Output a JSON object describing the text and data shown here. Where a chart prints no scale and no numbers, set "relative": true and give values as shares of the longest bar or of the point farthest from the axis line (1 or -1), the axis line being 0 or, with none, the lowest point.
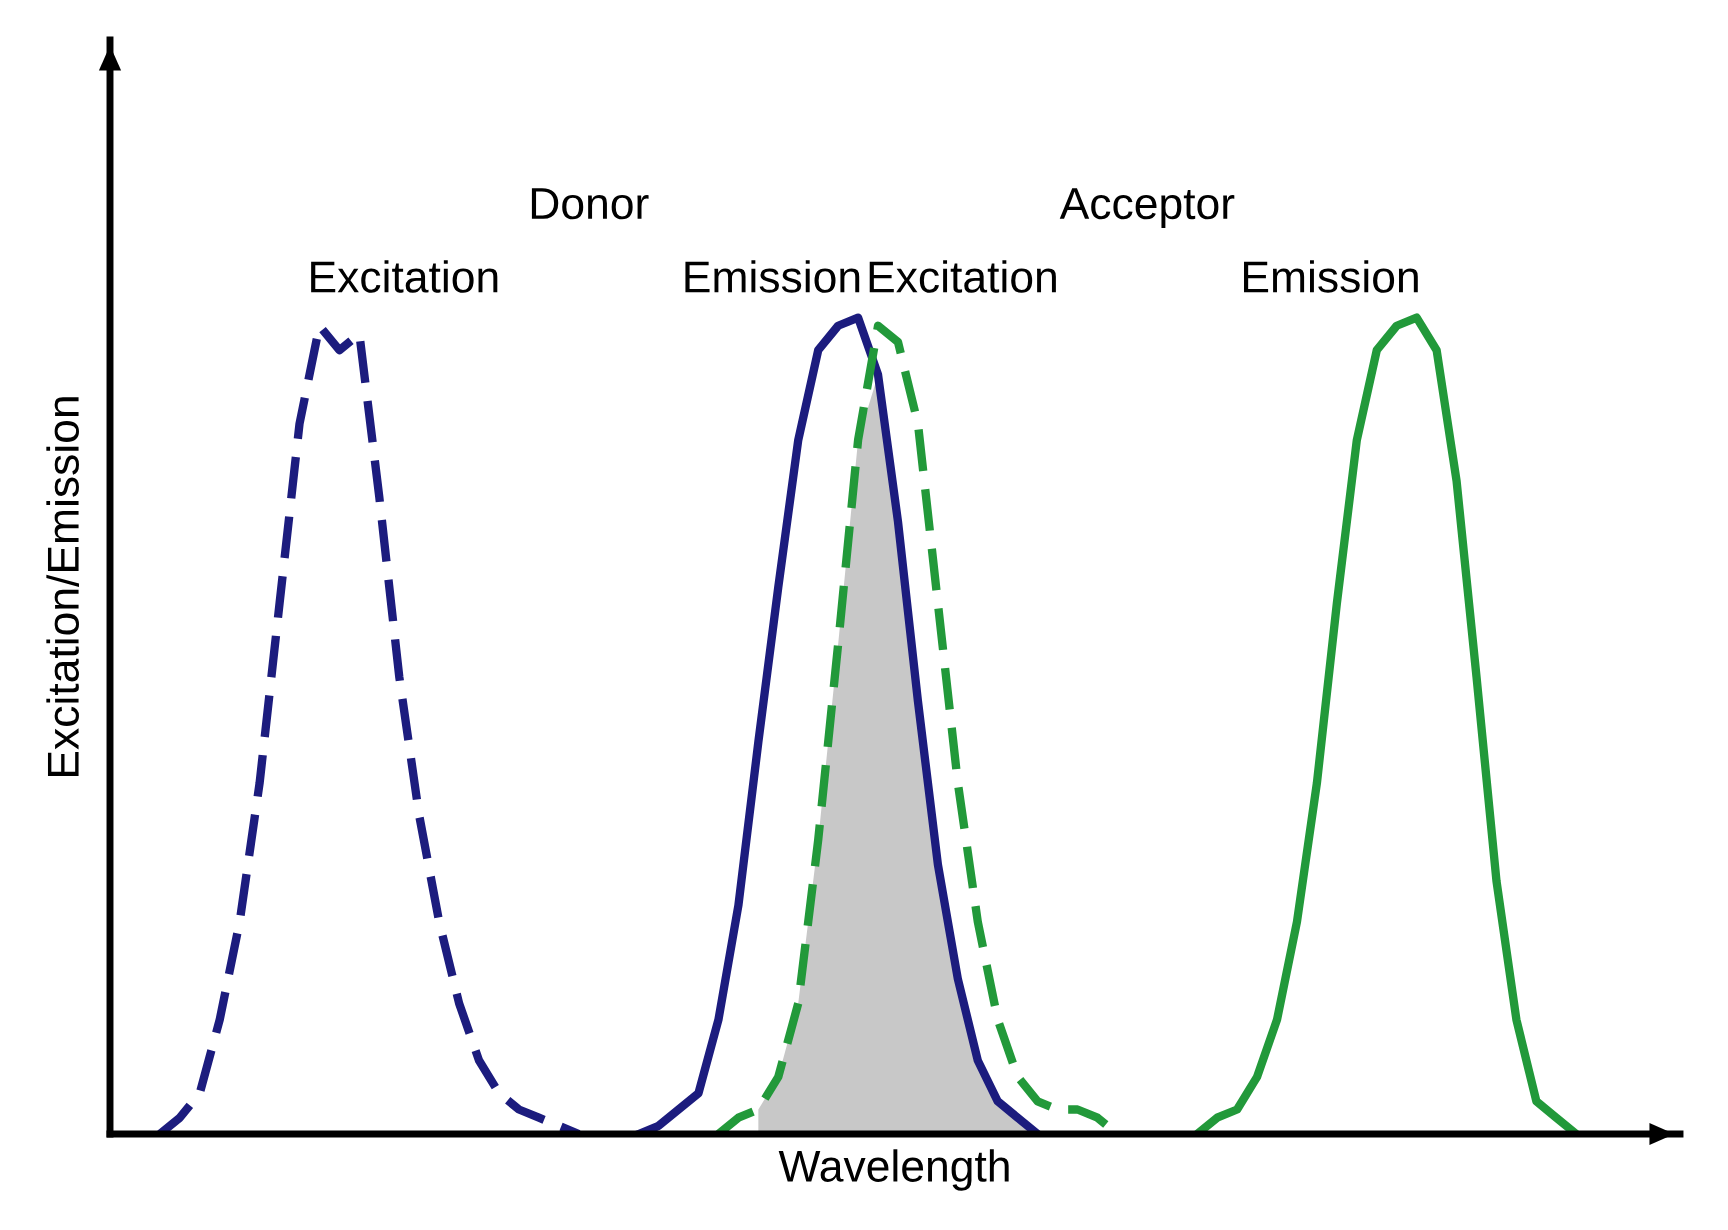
{
  "chart_data": {
    "type": "line",
    "relative": true,
    "xlabel": "Wavelength",
    "ylabel": "Excitation/Emission",
    "annotations": [
      "Donor",
      "Acceptor"
    ],
    "categories": [
      null,
      null,
      null,
      null,
      null,
      null,
      null,
      null,
      null,
      null,
      null,
      null,
      null,
      null,
      null,
      null,
      null,
      null,
      null,
      null,
      null,
      null,
      null,
      null,
      null,
      null,
      null,
      null,
      null,
      null,
      null,
      null,
      null,
      null,
      null,
      null,
      null,
      null,
      null,
      null,
      null,
      null,
      null,
      null,
      null,
      null,
      null,
      null,
      null,
      null,
      null,
      null,
      null,
      null,
      null,
      null,
      null,
      null,
      null,
      null,
      null,
      null,
      null,
      null,
      null,
      null,
      null,
      null,
      null,
      null,
      null,
      null,
      null,
      null,
      null,
      null,
      null,
      null,
      null
    ],
    "series": [
      {
        "type": "area",
        "color": "#c8c8c8",
        "values": [
          null,
          null,
          null,
          null,
          null,
          null,
          null,
          null,
          null,
          null,
          null,
          null,
          null,
          null,
          null,
          null,
          null,
          null,
          null,
          null,
          null,
          null,
          null,
          null,
          null,
          null,
          null,
          null,
          null,
          null,
          null,
          null,
          0.03,
          0.07,
          0.16,
          0.36,
          0.6,
          0.85,
          0.93,
          0.75,
          0.53,
          0.33,
          0.19,
          0.09,
          0.04,
          0.02,
          0,
          null,
          null,
          null,
          null,
          null,
          null,
          null,
          null,
          null,
          null,
          null,
          null,
          null,
          null,
          null,
          null,
          null,
          null,
          null,
          null,
          null,
          null,
          null,
          null,
          null,
          null,
          null,
          null,
          null,
          null,
          null,
          null
        ]
      },
      {
        "name": "Excitation",
        "color": "#1c1c7e",
        "line_style": "dashed",
        "values": [
          null,
          null,
          0,
          0.02,
          0.05,
          0.14,
          0.26,
          0.43,
          0.65,
          0.87,
          0.99,
          0.96,
          0.98,
          0.78,
          0.56,
          0.39,
          0.26,
          0.16,
          0.09,
          0.05,
          0.03,
          0.02,
          0.01,
          0,
          null,
          null,
          null,
          null,
          null,
          null,
          null,
          null,
          null,
          null,
          null,
          null,
          null,
          null,
          null,
          null,
          null,
          null,
          null,
          null,
          null,
          null,
          null,
          null,
          null,
          null,
          null,
          null,
          null,
          null,
          null,
          null,
          null,
          null,
          null,
          null,
          null,
          null,
          null,
          null,
          null,
          null,
          null,
          null,
          null,
          null,
          null,
          null,
          null,
          null,
          null,
          null,
          null,
          null,
          null
        ]
      },
      {
        "name": "Emission",
        "color": "#1c1c7e",
        "line_style": "solid",
        "values": [
          null,
          null,
          null,
          null,
          null,
          null,
          null,
          null,
          null,
          null,
          null,
          null,
          null,
          null,
          null,
          null,
          null,
          null,
          null,
          null,
          null,
          null,
          null,
          null,
          null,
          null,
          0,
          0.01,
          0.03,
          0.05,
          0.14,
          0.28,
          0.48,
          0.67,
          0.85,
          0.96,
          0.99,
          1,
          0.93,
          0.75,
          0.53,
          0.33,
          0.19,
          0.09,
          0.04,
          0.02,
          0,
          null,
          null,
          null,
          null,
          null,
          null,
          null,
          null,
          null,
          null,
          null,
          null,
          null,
          null,
          null,
          null,
          null,
          null,
          null,
          null,
          null,
          null,
          null,
          null,
          null,
          null,
          null,
          null,
          null,
          null,
          null,
          null
        ]
      },
      {
        "name": "Excitation",
        "color": "#22993a",
        "line_style": "dashed",
        "values": [
          null,
          null,
          null,
          null,
          null,
          null,
          null,
          null,
          null,
          null,
          null,
          null,
          null,
          null,
          null,
          null,
          null,
          null,
          null,
          null,
          null,
          null,
          null,
          null,
          null,
          null,
          null,
          null,
          null,
          null,
          0,
          0.02,
          0.03,
          0.07,
          0.16,
          0.36,
          0.6,
          0.85,
          0.99,
          0.97,
          0.87,
          0.65,
          0.43,
          0.26,
          0.14,
          0.07,
          0.04,
          0.03,
          0.03,
          0.02,
          0,
          null,
          null,
          null,
          null,
          null,
          null,
          null,
          null,
          null,
          null,
          null,
          null,
          null,
          null,
          null,
          null,
          null,
          null,
          null,
          null,
          null,
          null,
          null,
          null,
          null,
          null,
          null,
          null
        ]
      },
      {
        "name": "Emission",
        "color": "#22993a",
        "line_style": "solid",
        "values": [
          null,
          null,
          null,
          null,
          null,
          null,
          null,
          null,
          null,
          null,
          null,
          null,
          null,
          null,
          null,
          null,
          null,
          null,
          null,
          null,
          null,
          null,
          null,
          null,
          null,
          null,
          null,
          null,
          null,
          null,
          null,
          null,
          null,
          null,
          null,
          null,
          null,
          null,
          null,
          null,
          null,
          null,
          null,
          null,
          null,
          null,
          null,
          null,
          null,
          null,
          null,
          null,
          null,
          null,
          0,
          0.02,
          0.03,
          0.07,
          0.14,
          0.26,
          0.43,
          0.65,
          0.85,
          0.96,
          0.99,
          1,
          0.96,
          0.8,
          0.56,
          0.31,
          0.14,
          0.04,
          0.02,
          0,
          null,
          null,
          null,
          null,
          null
        ]
      }
    ]
  }
}
